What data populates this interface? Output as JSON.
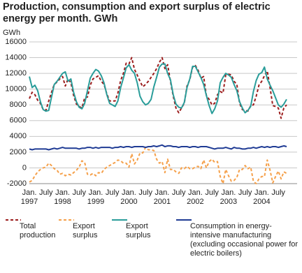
{
  "chart_data": {
    "type": "line",
    "title": "Production, consumption and export surplus of electric energy per month. GWh",
    "y_label": "GWh",
    "categories": [
      "Jan. 1997",
      null,
      null,
      null,
      null,
      null,
      "July",
      null,
      null,
      null,
      null,
      null,
      "Jan. 1998",
      null,
      null,
      null,
      null,
      null,
      "July",
      null,
      null,
      null,
      null,
      null,
      "Jan. 1999",
      null,
      null,
      null,
      null,
      null,
      "July",
      null,
      null,
      null,
      null,
      null,
      "Jan. 2000",
      null,
      null,
      null,
      null,
      null,
      "July",
      null,
      null,
      null,
      null,
      null,
      "Jan. 2001",
      null,
      null,
      null,
      null,
      null,
      "July",
      null,
      null,
      null,
      null,
      null,
      "Jan. 2002",
      null,
      null,
      null,
      null,
      null,
      "July",
      null,
      null,
      null,
      null,
      null,
      "Jan. 2003",
      null,
      null,
      null,
      null,
      null,
      "July",
      null,
      null,
      null,
      null,
      null,
      "Jan. 2004",
      null,
      null,
      null,
      null,
      null,
      "July",
      null,
      null,
      null
    ],
    "ylim": [
      -2000,
      16000
    ],
    "yticks": [
      -2000,
      0,
      2000,
      4000,
      6000,
      8000,
      10000,
      12000,
      14000,
      16000
    ],
    "grid": true,
    "series": [
      {
        "name": "Total production",
        "color": "#9b1c1c",
        "dashed": true,
        "values": [
          8800,
          9600,
          9300,
          8600,
          8200,
          7400,
          7300,
          8500,
          9600,
          10600,
          10900,
          11300,
          11600,
          10400,
          11300,
          10800,
          9200,
          8100,
          7800,
          7600,
          8900,
          9000,
          10500,
          11300,
          11500,
          11700,
          11000,
          10600,
          9400,
          8500,
          8500,
          8500,
          9500,
          11100,
          12000,
          13300,
          13200,
          14000,
          12500,
          11800,
          11000,
          10300,
          10600,
          11000,
          11500,
          12000,
          12600,
          13400,
          14000,
          12600,
          13100,
          11000,
          9100,
          7600,
          7000,
          7600,
          8200,
          10400,
          11200,
          12800,
          13000,
          12400,
          11400,
          11600,
          9200,
          8700,
          8000,
          8200,
          9300,
          9700,
          9500,
          11800,
          11900,
          11800,
          11000,
          10600,
          8200,
          7400,
          7300,
          7200,
          7900,
          8000,
          9100,
          10500,
          11000,
          11700,
          12300,
          10200,
          7900,
          7800,
          7600,
          6300,
          7600,
          8000
        ]
      },
      {
        "name": "Export surplus",
        "color": "#f5a04a",
        "dashed": true,
        "values": [
          -1800,
          -1600,
          -1000,
          -500,
          -200,
          0,
          100,
          600,
          300,
          -100,
          -300,
          -800,
          -700,
          -1000,
          -800,
          -900,
          -600,
          -300,
          100,
          900,
          700,
          -800,
          -900,
          -700,
          -1000,
          -600,
          -700,
          -200,
          100,
          300,
          500,
          700,
          1000,
          900,
          600,
          600,
          100,
          1800,
          500,
          1000,
          1900,
          1900,
          2600,
          2300,
          2300,
          2200,
          1100,
          600,
          800,
          -600,
          1100,
          -200,
          -200,
          -500,
          -700,
          0,
          -100,
          200,
          -100,
          -100,
          100,
          200,
          -100,
          1000,
          0,
          800,
          1100,
          700,
          800,
          -1100,
          -2000,
          -200,
          -1000,
          -1700,
          -1600,
          -1200,
          -200,
          -200,
          300,
          -100,
          100,
          -1700,
          -2000,
          -1400,
          -1100,
          -1100,
          1000,
          -300,
          -1900,
          -1100,
          -400,
          -1400,
          -500,
          -700
        ]
      },
      {
        "name": "Export surplus",
        "color": "#2a9d9a",
        "dashed": false,
        "values": [
          11600,
          10200,
          10500,
          9800,
          8400,
          7400,
          7200,
          7300,
          9000,
          10600,
          11000,
          11500,
          12000,
          12200,
          11000,
          11300,
          9600,
          8400,
          7700,
          7500,
          8200,
          9800,
          11400,
          12000,
          12500,
          12300,
          11700,
          10800,
          9300,
          8200,
          8000,
          7800,
          8500,
          10200,
          11400,
          12700,
          13100,
          12400,
          12000,
          10800,
          9100,
          8400,
          8000,
          8200,
          8700,
          10300,
          11500,
          12800,
          13200,
          13200,
          12000,
          11200,
          9300,
          8100,
          7700,
          7600,
          8300,
          10200,
          11300,
          12900,
          12900,
          12200,
          11500,
          10600,
          9200,
          7900,
          6900,
          7500,
          8500,
          10800,
          11500,
          12000,
          11800,
          11500,
          10600,
          9800,
          8400,
          7600,
          7000,
          7300,
          7800,
          9700,
          11100,
          11900,
          12100,
          12800,
          11300,
          10500,
          9800,
          8900,
          8000,
          7700,
          8100,
          8700
        ]
      },
      {
        "name": "Consumption in energy-intensive manufacturing (excluding occasional power for electric boilers)",
        "color": "#1f3b94",
        "dashed": false,
        "values": [
          2400,
          2300,
          2400,
          2400,
          2400,
          2400,
          2400,
          2300,
          2400,
          2500,
          2400,
          2500,
          2600,
          2500,
          2500,
          2500,
          2500,
          2500,
          2400,
          2500,
          2500,
          2600,
          2600,
          2500,
          2600,
          2500,
          2600,
          2600,
          2600,
          2600,
          2500,
          2600,
          2600,
          2700,
          2600,
          2700,
          2700,
          2600,
          2700,
          2700,
          2700,
          2700,
          2600,
          2700,
          2700,
          2800,
          2700,
          2800,
          2900,
          2700,
          2800,
          2800,
          2700,
          2700,
          2600,
          2700,
          2700,
          2700,
          2600,
          2700,
          2700,
          2600,
          2700,
          2700,
          2700,
          2600,
          2500,
          2400,
          2500,
          2500,
          2500,
          2600,
          2500,
          2400,
          2600,
          2500,
          2500,
          2400,
          2400,
          2500,
          2500,
          2600,
          2500,
          2600,
          2700,
          2600,
          2700,
          2600,
          2700,
          2700,
          2600,
          2700,
          2800,
          2700
        ]
      }
    ]
  }
}
